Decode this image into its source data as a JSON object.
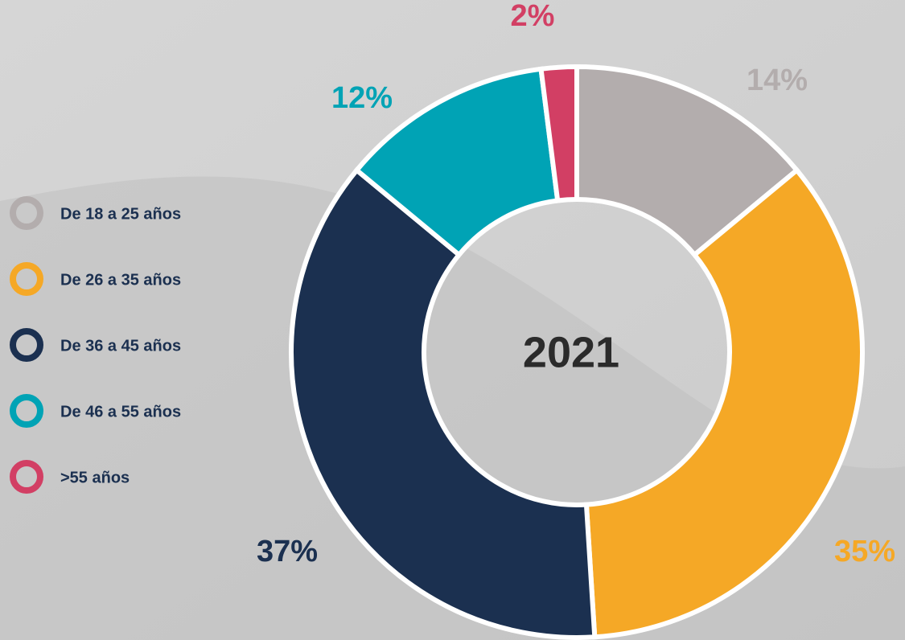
{
  "chart_data": {
    "type": "donut",
    "center_label": "2021",
    "categories": [
      "De 18 a 25 años",
      "De 26 a 35 años",
      "De 36 a 45 años",
      "De 46 a 55 años",
      ">55 años"
    ],
    "values": [
      14,
      35,
      37,
      12,
      2
    ],
    "value_labels": [
      "14%",
      "35%",
      "37%",
      "12%",
      "2%"
    ],
    "colors": [
      "#b3adad",
      "#f5a826",
      "#1b3050",
      "#00a3b5",
      "#d23f64"
    ]
  }
}
